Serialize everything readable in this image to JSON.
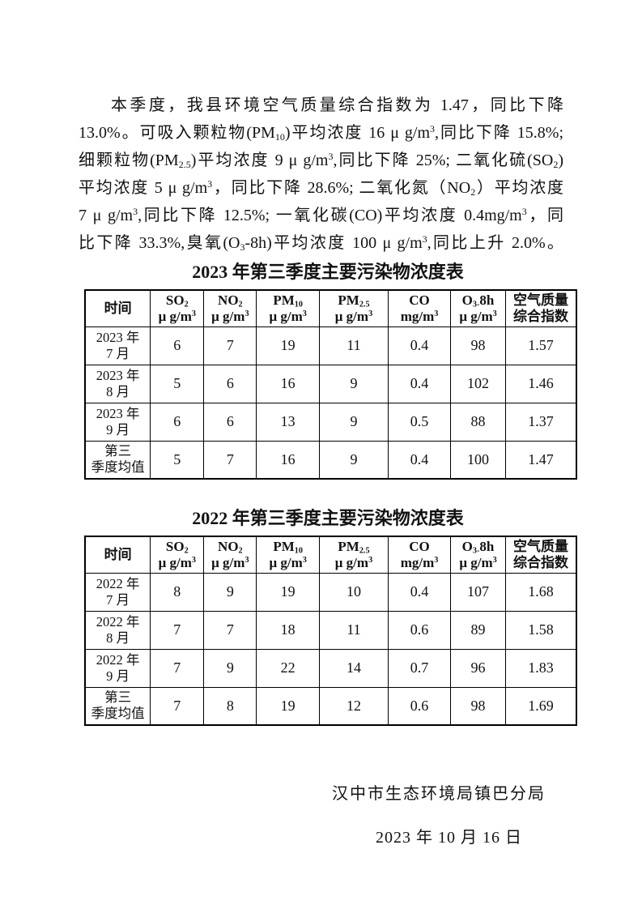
{
  "document": {
    "paragraph_lines": [
      [
        {
          "t": "本季度，我县环境空气质量综合指数为 1.47，同比下降"
        }
      ],
      [
        {
          "t": "13.0%。可吸入颗粒物(PM"
        },
        {
          "t": "10",
          "s": "sub"
        },
        {
          "t": ")平均浓度 16 μ g/m"
        },
        {
          "t": "3",
          "s": "sup"
        },
        {
          "t": ",同比下降 15.8%;"
        }
      ],
      [
        {
          "t": "细颗粒物(PM"
        },
        {
          "t": "2.5",
          "s": "sub"
        },
        {
          "t": ")平均浓度 9 μ g/m"
        },
        {
          "t": "3",
          "s": "sup"
        },
        {
          "t": ",同比下降 25%; 二氧化硫(SO"
        },
        {
          "t": "2",
          "s": "sub"
        },
        {
          "t": ")"
        }
      ],
      [
        {
          "t": "平均浓度 5 μ g/m"
        },
        {
          "t": "3",
          "s": "sup"
        },
        {
          "t": "，同比下降 28.6%; 二氧化氮（NO"
        },
        {
          "t": "2",
          "s": "sub"
        },
        {
          "t": "）平均浓度"
        }
      ],
      [
        {
          "t": "7 μ g/m"
        },
        {
          "t": "3",
          "s": "sup"
        },
        {
          "t": ",同比下降 12.5%; 一氧化碳(CO)平均浓度 0.4mg/m"
        },
        {
          "t": "3",
          "s": "sup"
        },
        {
          "t": "，同"
        }
      ],
      [
        {
          "t": "比下降 33.3%,臭氧(O"
        },
        {
          "t": "3",
          "s": "sub"
        },
        {
          "t": "-8h)平均浓度 100 μ g/m"
        },
        {
          "t": "3",
          "s": "sup"
        },
        {
          "t": ",同比上升 2.0%。"
        }
      ]
    ],
    "tables": [
      {
        "title": "2023 年第三季度主要污染物浓度表",
        "columns": [
          {
            "line1": [
              {
                "t": "时间"
              }
            ],
            "line2": []
          },
          {
            "line1": [
              {
                "t": "SO"
              },
              {
                "t": "2",
                "s": "sub"
              }
            ],
            "line2": [
              {
                "t": "μ g/m"
              },
              {
                "t": "3",
                "s": "sup"
              }
            ]
          },
          {
            "line1": [
              {
                "t": "NO"
              },
              {
                "t": "2",
                "s": "sub"
              }
            ],
            "line2": [
              {
                "t": "μ g/m"
              },
              {
                "t": "3",
                "s": "sup"
              }
            ]
          },
          {
            "line1": [
              {
                "t": "PM"
              },
              {
                "t": "10",
                "s": "sub"
              }
            ],
            "line2": [
              {
                "t": "μ g/m"
              },
              {
                "t": "3",
                "s": "sup"
              }
            ]
          },
          {
            "line1": [
              {
                "t": "PM"
              },
              {
                "t": "2.5",
                "s": "sub"
              }
            ],
            "line2": [
              {
                "t": "μ g/m"
              },
              {
                "t": "3",
                "s": "sup"
              }
            ]
          },
          {
            "line1": [
              {
                "t": "CO"
              }
            ],
            "line2": [
              {
                "t": "mg/m"
              },
              {
                "t": "3",
                "s": "sup"
              }
            ]
          },
          {
            "line1": [
              {
                "t": "O"
              },
              {
                "t": "3-",
                "s": "sub"
              },
              {
                "t": "8h"
              }
            ],
            "line2": [
              {
                "t": "μ g/m"
              },
              {
                "t": "3",
                "s": "sup"
              }
            ]
          },
          {
            "line1": [
              {
                "t": "空气质量"
              }
            ],
            "line2": [
              {
                "t": "综合指数"
              }
            ]
          }
        ],
        "rows": [
          {
            "time_lines": [
              "2023 年",
              "7 月"
            ],
            "values": [
              "6",
              "7",
              "19",
              "11",
              "0.4",
              "98",
              "1.57"
            ]
          },
          {
            "time_lines": [
              "2023 年",
              "8 月"
            ],
            "values": [
              "5",
              "6",
              "16",
              "9",
              "0.4",
              "102",
              "1.46"
            ]
          },
          {
            "time_lines": [
              "2023 年",
              "9 月"
            ],
            "values": [
              "6",
              "6",
              "13",
              "9",
              "0.5",
              "88",
              "1.37"
            ]
          },
          {
            "time_lines": [
              "第三",
              "季度均值"
            ],
            "values": [
              "5",
              "7",
              "16",
              "9",
              "0.4",
              "100",
              "1.47"
            ]
          }
        ]
      },
      {
        "title": "2022 年第三季度主要污染物浓度表",
        "columns": [
          {
            "line1": [
              {
                "t": "时间"
              }
            ],
            "line2": []
          },
          {
            "line1": [
              {
                "t": "SO"
              },
              {
                "t": "2",
                "s": "sub"
              }
            ],
            "line2": [
              {
                "t": "μ g/m"
              },
              {
                "t": "3",
                "s": "sup"
              }
            ]
          },
          {
            "line1": [
              {
                "t": "NO"
              },
              {
                "t": "2",
                "s": "sub"
              }
            ],
            "line2": [
              {
                "t": "μ g/m"
              },
              {
                "t": "3",
                "s": "sup"
              }
            ]
          },
          {
            "line1": [
              {
                "t": "PM"
              },
              {
                "t": "10",
                "s": "sub"
              }
            ],
            "line2": [
              {
                "t": "μ g/m"
              },
              {
                "t": "3",
                "s": "sup"
              }
            ]
          },
          {
            "line1": [
              {
                "t": "PM"
              },
              {
                "t": "2.5",
                "s": "sub"
              }
            ],
            "line2": [
              {
                "t": "μ g/m"
              },
              {
                "t": "3",
                "s": "sup"
              }
            ]
          },
          {
            "line1": [
              {
                "t": "CO"
              }
            ],
            "line2": [
              {
                "t": "mg/m"
              },
              {
                "t": "3",
                "s": "sup"
              }
            ]
          },
          {
            "line1": [
              {
                "t": "O"
              },
              {
                "t": "3-",
                "s": "sub"
              },
              {
                "t": "8h"
              }
            ],
            "line2": [
              {
                "t": "μ g/m"
              },
              {
                "t": "3",
                "s": "sup"
              }
            ]
          },
          {
            "line1": [
              {
                "t": "空气质量"
              }
            ],
            "line2": [
              {
                "t": "综合指数"
              }
            ]
          }
        ],
        "rows": [
          {
            "time_lines": [
              "2022 年",
              "7 月"
            ],
            "values": [
              "8",
              "9",
              "19",
              "10",
              "0.4",
              "107",
              "1.68"
            ]
          },
          {
            "time_lines": [
              "2022 年",
              "8 月"
            ],
            "values": [
              "7",
              "7",
              "18",
              "11",
              "0.6",
              "89",
              "1.58"
            ]
          },
          {
            "time_lines": [
              "2022 年",
              "9 月"
            ],
            "values": [
              "7",
              "9",
              "22",
              "14",
              "0.7",
              "96",
              "1.83"
            ]
          },
          {
            "time_lines": [
              "第三",
              "季度均值"
            ],
            "values": [
              "7",
              "8",
              "19",
              "12",
              "0.6",
              "98",
              "1.69"
            ]
          }
        ]
      }
    ],
    "footer": {
      "organization": "汉中市生态环境局镇巴分局",
      "date": "2023 年 10 月 16 日"
    }
  }
}
